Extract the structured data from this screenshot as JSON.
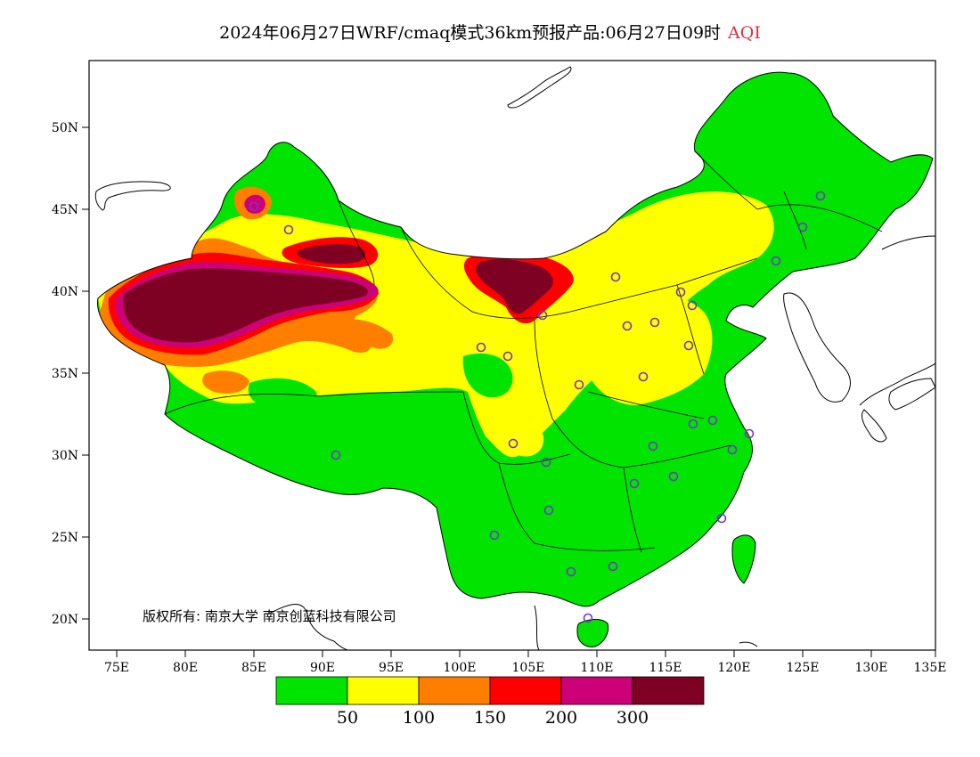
{
  "header": {
    "title": "2024年06月27日WRF/cmaq模式36km预报产品:06月27日09时",
    "variable": "AQI"
  },
  "axes": {
    "lat_ticks": [
      "50N",
      "45N",
      "40N",
      "35N",
      "30N",
      "25N",
      "20N"
    ],
    "lon_ticks": [
      "75E",
      "80E",
      "85E",
      "90E",
      "95E",
      "100E",
      "105E",
      "110E",
      "115E",
      "120E",
      "125E",
      "130E",
      "135E"
    ]
  },
  "copyright": "版权所有: 南京大学  南京创蓝科技有限公司",
  "colorbar": {
    "bins": [
      {
        "color": "#00e400"
      },
      {
        "color": "#ffff00"
      },
      {
        "color": "#ff7e00"
      },
      {
        "color": "#ff0000"
      },
      {
        "color": "#cc0077"
      },
      {
        "color": "#7e0023"
      }
    ],
    "labels": [
      "50",
      "100",
      "150",
      "200",
      "300"
    ]
  },
  "station_marker_color": "#7733cc"
}
